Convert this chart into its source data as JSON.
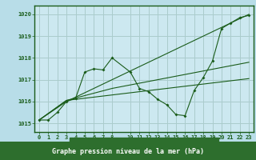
{
  "title": "Graphe pression niveau de la mer (hPa)",
  "bg_color": "#b8dde8",
  "plot_bg_color": "#cce8f0",
  "label_bg_color": "#2d6e2d",
  "line_color": "#1a5c1a",
  "grid_color": "#aacccc",
  "text_color": "#1a5c1a",
  "label_text_color": "#ffffff",
  "ylim": [
    1014.6,
    1020.4
  ],
  "yticks": [
    1015,
    1016,
    1017,
    1018,
    1019,
    1020
  ],
  "xlim": [
    -0.5,
    23.5
  ],
  "xticks": [
    0,
    1,
    2,
    3,
    4,
    5,
    6,
    7,
    8,
    10,
    11,
    12,
    13,
    14,
    15,
    16,
    17,
    18,
    19,
    20,
    21,
    22,
    23
  ],
  "series": [
    [
      0,
      1015.15
    ],
    [
      1,
      1015.15
    ],
    [
      2,
      1015.5
    ],
    [
      3,
      1016.0
    ],
    [
      4,
      1016.15
    ],
    [
      5,
      1017.35
    ],
    [
      6,
      1017.5
    ],
    [
      7,
      1017.45
    ],
    [
      8,
      1018.0
    ],
    [
      10,
      1017.35
    ],
    [
      11,
      1016.6
    ],
    [
      12,
      1016.45
    ],
    [
      13,
      1016.1
    ],
    [
      14,
      1015.85
    ],
    [
      15,
      1015.4
    ],
    [
      16,
      1015.35
    ],
    [
      17,
      1016.5
    ],
    [
      18,
      1017.1
    ],
    [
      19,
      1017.85
    ],
    [
      20,
      1019.35
    ],
    [
      21,
      1019.6
    ],
    [
      22,
      1019.85
    ],
    [
      23,
      1019.95
    ]
  ],
  "line2": [
    [
      0,
      1015.15
    ],
    [
      3,
      1016.0
    ],
    [
      23,
      1020.0
    ]
  ],
  "line3": [
    [
      0,
      1015.15
    ],
    [
      3,
      1016.05
    ],
    [
      23,
      1017.05
    ]
  ],
  "line4": [
    [
      0,
      1015.15
    ],
    [
      3,
      1016.05
    ],
    [
      8,
      1016.6
    ],
    [
      23,
      1017.8
    ]
  ]
}
